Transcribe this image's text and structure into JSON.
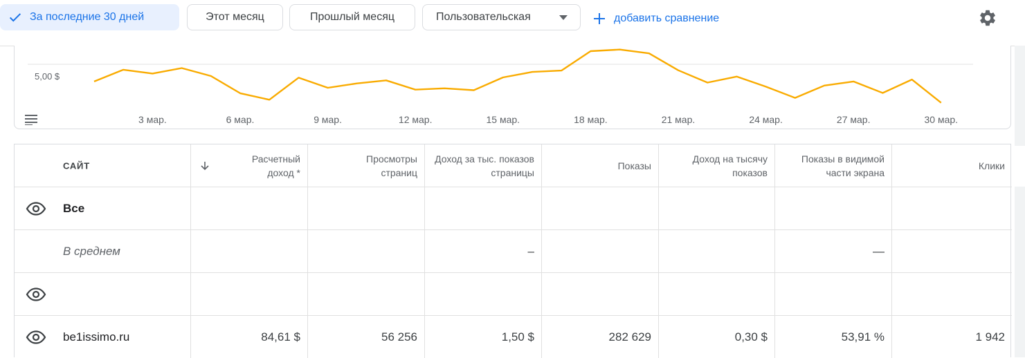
{
  "filters": {
    "active_label": "За последние 30 дней",
    "this_month": "Этот месяц",
    "last_month": "Прошлый месяц",
    "custom": "Пользовательская",
    "add_comparison": "добавить сравнение"
  },
  "chart_data": {
    "type": "line",
    "ytick": "5,00 $",
    "x_ticks": [
      "3 мар.",
      "6 мар.",
      "9 мар.",
      "12 мар.",
      "15 мар.",
      "18 мар.",
      "21 мар.",
      "24 мар.",
      "27 мар.",
      "30 мар."
    ],
    "series": [
      {
        "color": "#f9ab00",
        "values": [
          4.37,
          4.8,
          4.66,
          4.86,
          4.57,
          3.94,
          3.7,
          4.51,
          4.14,
          4.3,
          4.41,
          4.07,
          4.12,
          4.05,
          4.52,
          4.72,
          4.77,
          5.48,
          5.54,
          5.4,
          4.78,
          4.33,
          4.55,
          4.18,
          3.77,
          4.22,
          4.37,
          3.95,
          4.44,
          3.59
        ]
      }
    ],
    "ylim_reference": 5.0
  },
  "table": {
    "headers": {
      "site": "САЙТ",
      "revenue": "Расчетный доход *",
      "pageviews": "Просмотры страниц",
      "page_rpm": "Доход за тыс. показов страницы",
      "impressions": "Показы",
      "rpm": "Доход на тысячу показов",
      "viewable": "Показы в видимой части экрана",
      "clicks": "Клики"
    },
    "rows": [
      {
        "site": "Все",
        "style": "bold",
        "eye": true
      },
      {
        "site": "В среднем",
        "style": "italic",
        "eye": false,
        "page_rpm": "–",
        "viewable": "—"
      },
      {
        "site": "",
        "style": "normal",
        "eye": true
      },
      {
        "site": "be1issimo.ru",
        "style": "normal",
        "eye": true,
        "revenue": "84,61 $",
        "pageviews": "56 256",
        "page_rpm": "1,50 $",
        "impressions": "282 629",
        "rpm": "0,30 $",
        "viewable": "53,91 %",
        "clicks": "1 942"
      }
    ]
  }
}
